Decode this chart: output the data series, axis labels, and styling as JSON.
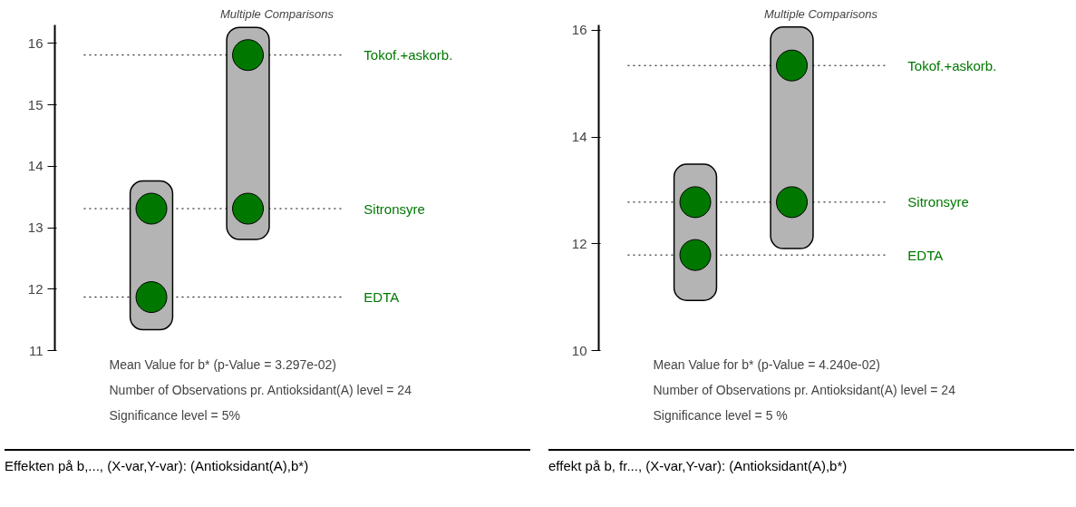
{
  "chart_data": [
    {
      "type": "scatter",
      "title": "Multiple Comparisons",
      "categories": [
        null,
        null
      ],
      "series": [
        {
          "type": "bar",
          "color": "#b4b4b4",
          "base": [
            11.34,
            12.81
          ],
          "values": [
            2.42,
            3.45
          ]
        },
        {
          "color": "#007800",
          "values": [
            13.31,
            15.81
          ]
        },
        {
          "color": "#007800",
          "values": [
            11.87,
            13.31
          ]
        }
      ],
      "marker": "circle",
      "ylim": [
        11,
        16.3
      ],
      "yticks": [
        11,
        12,
        13,
        14,
        15,
        16
      ],
      "grid": false,
      "ref_lines": [
        {
          "axis": "y",
          "value": 15.81,
          "label": "Tokof.+askorb.",
          "line_style": "dotted"
        },
        {
          "axis": "y",
          "value": 13.31,
          "label": "Sitronsyre",
          "line_style": "dotted"
        },
        {
          "axis": "y",
          "value": 11.87,
          "label": "EDTA",
          "line_style": "dotted"
        }
      ],
      "annotations": [
        "Mean Value for b* (p-Value = 3.297e-02)",
        "Number of Observations pr. Antioksidant(A) level = 24",
        "Significance level = 5%",
        "Effekten på b,..., (X-var,Y-var): (Antioksidant(A),b*)"
      ]
    },
    {
      "type": "scatter",
      "title": "Multiple Comparisons",
      "categories": [
        null,
        null
      ],
      "series": [
        {
          "type": "bar",
          "color": "#b4b4b4",
          "base": [
            10.94,
            11.91
          ],
          "values": [
            2.55,
            4.15
          ]
        },
        {
          "color": "#007800",
          "values": [
            12.78,
            15.34
          ]
        },
        {
          "color": "#007800",
          "values": [
            11.79,
            12.78
          ]
        }
      ],
      "marker": "circle",
      "ylim": [
        10,
        16.1
      ],
      "yticks": [
        10,
        12,
        14,
        16
      ],
      "grid": false,
      "ref_lines": [
        {
          "axis": "y",
          "value": 15.34,
          "label": "Tokof.+askorb.",
          "line_style": "dotted"
        },
        {
          "axis": "y",
          "value": 12.78,
          "label": "Sitronsyre",
          "line_style": "dotted"
        },
        {
          "axis": "y",
          "value": 11.79,
          "label": "EDTA",
          "line_style": "dotted"
        }
      ],
      "annotations": [
        "Mean Value for b* (p-Value = 4.240e-02)",
        "Number of Observations pr. Antioksidant(A) level = 24",
        "Significance level = 5 %",
        "effekt på b, fr..., (X-var,Y-var): (Antioksidant(A),b*)"
      ]
    }
  ]
}
